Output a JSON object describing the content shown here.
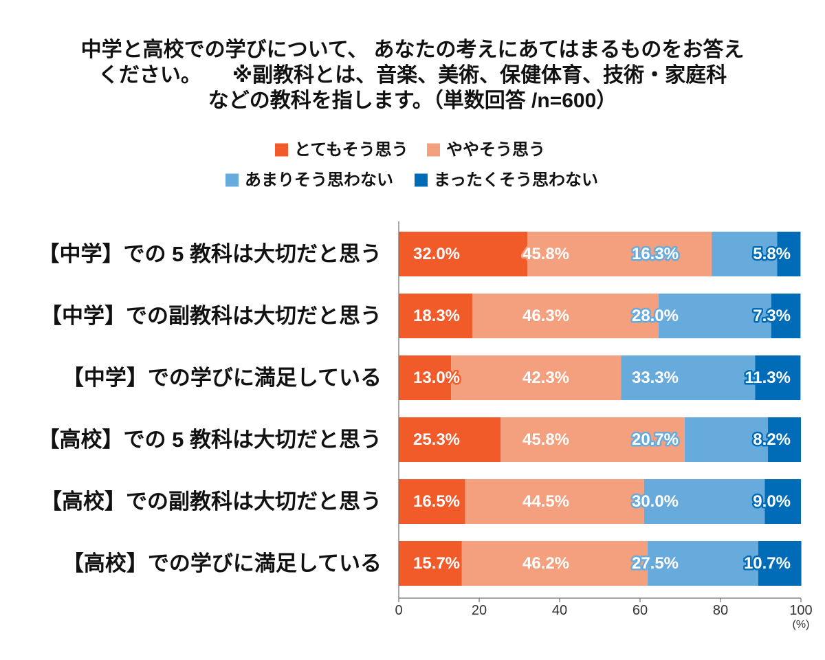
{
  "chart_data": {
    "type": "bar",
    "orientation": "horizontal",
    "stacked": true,
    "title": [
      "中学と高校での学びについて、 あなたの考えにあてはまるものをお答え",
      "ください。　　※副教科とは、音楽、美術、保健体育、技術・家庭科",
      "などの教科を指します。（単数回答 /n=600）"
    ],
    "categories": [
      "【中学】での 5 教科は大切だと思う",
      "【中学】での副教科は大切だと思う",
      "【中学】での学びに満足している",
      "【高校】での 5 教科は大切だと思う",
      "【高校】での副教科は大切だと思う",
      "【高校】での学びに満足している"
    ],
    "series": [
      {
        "name": "とてもそう思う",
        "color": "#F15A29",
        "values": [
          32.0,
          18.3,
          13.0,
          25.3,
          16.5,
          15.7
        ]
      },
      {
        "name": "ややそう思う",
        "color": "#F4A07F",
        "values": [
          45.8,
          46.3,
          42.3,
          45.8,
          44.5,
          46.2
        ]
      },
      {
        "name": "あまりそう思わない",
        "color": "#66ABDB",
        "values": [
          16.3,
          28.0,
          33.3,
          20.7,
          30.0,
          27.5
        ]
      },
      {
        "name": "まったくそう思わない",
        "color": "#006CB7",
        "values": [
          5.8,
          7.3,
          11.3,
          8.2,
          9.0,
          10.7
        ]
      }
    ],
    "xlim": [
      0,
      100
    ],
    "xticks": [
      0,
      20,
      40,
      60,
      80,
      100
    ],
    "xlabel": "(%)",
    "legend": "top",
    "grid": false
  }
}
